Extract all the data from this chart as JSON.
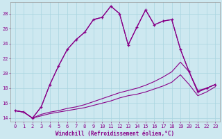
{
  "xlabel": "Windchill (Refroidissement éolien,°C)",
  "bg_color": "#cde8f0",
  "grid_color": "#a8d4e0",
  "line_color": "#880088",
  "xlim": [
    -0.5,
    23.5
  ],
  "ylim": [
    13.5,
    29.5
  ],
  "yticks": [
    14,
    16,
    18,
    20,
    22,
    24,
    26,
    28
  ],
  "xticks": [
    0,
    1,
    2,
    3,
    4,
    5,
    6,
    7,
    8,
    9,
    10,
    11,
    12,
    13,
    14,
    15,
    16,
    17,
    18,
    19,
    20,
    21,
    22,
    23
  ],
  "series": [
    {
      "x": [
        0,
        1,
        2,
        3,
        4,
        5,
        6,
        7,
        8,
        9,
        10,
        11,
        12,
        13,
        14,
        15,
        16,
        17,
        18,
        19,
        20,
        21,
        22,
        23
      ],
      "y": [
        15.0,
        14.8,
        14.0,
        15.5,
        18.5,
        21.0,
        23.2,
        24.5,
        25.5,
        27.2,
        27.5,
        29.0,
        28.0,
        23.8,
        26.2,
        28.5,
        26.5,
        27.0,
        27.2,
        23.2,
        20.2,
        17.5,
        18.0,
        18.5
      ],
      "marker": "+",
      "lw": 0.9
    },
    {
      "x": [
        0,
        1,
        2,
        3,
        4,
        5,
        6,
        7,
        8,
        9,
        10,
        11,
        12,
        13,
        14,
        15,
        16,
        17,
        18,
        19,
        20,
        21,
        22,
        23
      ],
      "y": [
        15.0,
        14.8,
        14.0,
        15.5,
        18.5,
        21.0,
        23.2,
        24.5,
        25.5,
        27.2,
        27.5,
        29.0,
        28.0,
        23.8,
        26.2,
        28.5,
        26.5,
        27.0,
        27.2,
        23.2,
        20.2,
        17.5,
        18.0,
        18.5
      ],
      "marker": null,
      "lw": 0.8
    },
    {
      "x": [
        0,
        1,
        2,
        3,
        4,
        5,
        6,
        7,
        8,
        9,
        10,
        11,
        12,
        13,
        14,
        15,
        16,
        17,
        18,
        19,
        20,
        21,
        22,
        23
      ],
      "y": [
        15.0,
        14.8,
        14.0,
        14.5,
        14.8,
        15.0,
        15.3,
        15.5,
        15.8,
        16.2,
        16.6,
        17.0,
        17.4,
        17.7,
        18.0,
        18.4,
        18.9,
        19.5,
        20.2,
        21.5,
        20.2,
        17.7,
        18.0,
        18.5
      ],
      "marker": null,
      "lw": 0.8
    },
    {
      "x": [
        0,
        1,
        2,
        3,
        4,
        5,
        6,
        7,
        8,
        9,
        10,
        11,
        12,
        13,
        14,
        15,
        16,
        17,
        18,
        19,
        20,
        21,
        22,
        23
      ],
      "y": [
        15.0,
        14.8,
        14.0,
        14.3,
        14.6,
        14.8,
        15.0,
        15.2,
        15.4,
        15.7,
        16.0,
        16.3,
        16.7,
        17.0,
        17.2,
        17.5,
        17.9,
        18.3,
        18.8,
        19.8,
        18.5,
        17.0,
        17.5,
        18.2
      ],
      "marker": null,
      "lw": 0.8
    }
  ]
}
